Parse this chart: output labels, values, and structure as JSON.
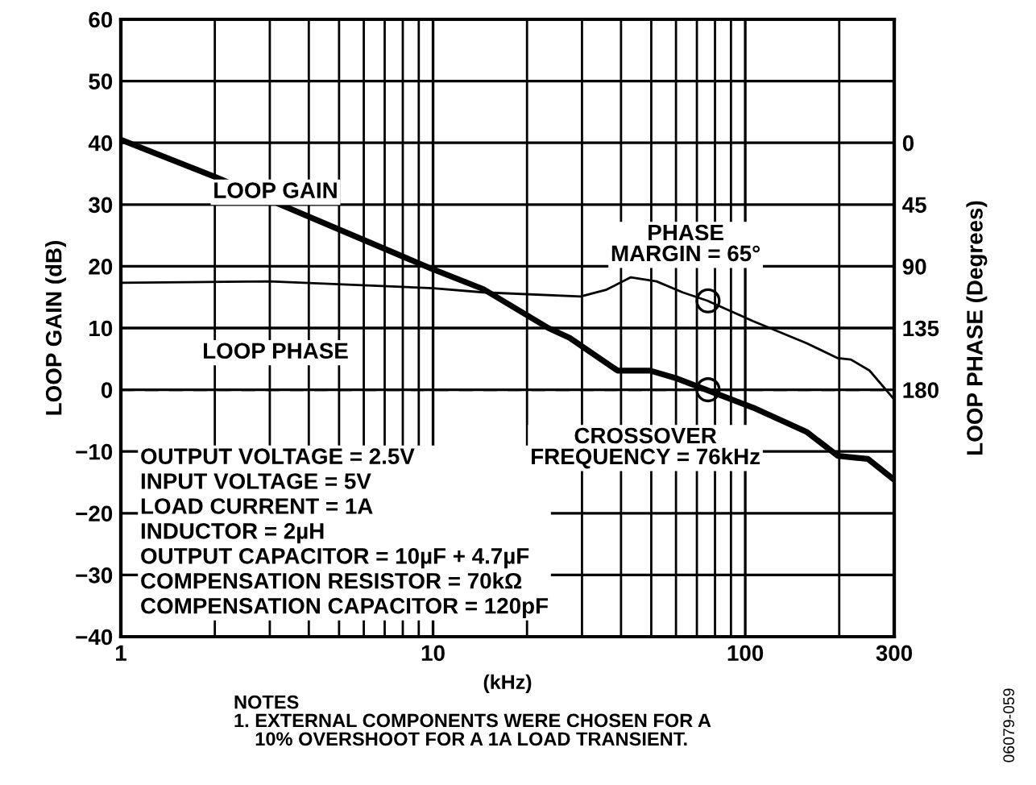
{
  "chart_data": {
    "type": "line",
    "xlabel": "(kHz)",
    "ylabel": "LOOP GAIN (dB)",
    "y2label": "LOOP PHASE (Degrees)",
    "log": "x",
    "grid": true,
    "line_style": "solid",
    "marker": "none",
    "xlim": [
      1,
      300
    ],
    "xticks": [
      1,
      10,
      100,
      300
    ],
    "ylim": [
      -40,
      60
    ],
    "yticks": [
      {
        "value": -40,
        "label": "−40"
      },
      {
        "value": -30,
        "label": "−30"
      },
      {
        "value": -20,
        "label": "−20"
      },
      {
        "value": -10,
        "label": "−10"
      },
      0,
      10,
      20,
      30,
      40,
      50,
      60
    ],
    "y2lim": [
      360,
      -90
    ],
    "y2ticks": [
      0,
      45,
      90,
      135,
      180
    ],
    "series": [
      {
        "name": "LOOP GAIN",
        "color": "#000000",
        "x": [
          1,
          2,
          10,
          14.5,
          23.4,
          27.4,
          39,
          49.6,
          60.6,
          75,
          106,
          157,
          198,
          225,
          247,
          300
        ],
        "values": [
          40.5,
          34.5,
          19.5,
          16.3,
          10,
          8.4,
          3.1,
          3.1,
          1.8,
          0,
          -2.9,
          -6.8,
          -10.7,
          -11,
          -11.2,
          -14.6
        ]
      },
      {
        "name": "LOOP PHASE",
        "axis": "y2",
        "color": "#000000",
        "x": [
          1,
          3,
          10,
          14.5,
          29.7,
          36,
          43,
          52,
          63,
          75.5,
          106,
          157,
          198,
          218,
          250,
          300
        ],
        "values": [
          102,
          101,
          106,
          109,
          112,
          107,
          98,
          101,
          109,
          115,
          130,
          146,
          157,
          158,
          166,
          187
        ]
      }
    ],
    "ref_lines": [
      {
        "axis": "y",
        "value": 0,
        "line_style": "dashed",
        "color": "#000000"
      }
    ],
    "annotations": [
      "OUTPUT VOLTAGE = 2.5V\nINPUT VOLTAGE = 5V\nLOAD CURRENT = 1A\nINDUCTOR = 2µH\nOUTPUT CAPACITOR = 10µF + 4.7µF\nCOMPENSATION RESISTOR = 70kΩ\nCOMPENSATION CAPACITOR = 120pF",
      {
        "text": "CROSSOVER\nFREQUENCY = 76kHz",
        "x": 76,
        "y": 0
      },
      {
        "text": "PHASE\nMARGIN = 65°",
        "x": 76,
        "y": 14.4
      },
      "NOTES\n1. EXTERNAL COMPONENTS WERE CHOSEN FOR A\n    10% OVERSHOOT FOR A 1A LOAD TRANSIENT.",
      "06079-059"
    ]
  }
}
